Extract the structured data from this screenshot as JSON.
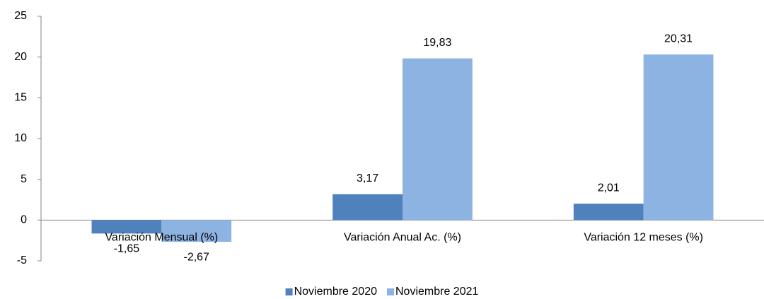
{
  "chart_data": {
    "type": "bar",
    "categories": [
      "Variación Mensual (%)",
      "Variación Anual Ac. (%)",
      "Variación 12 meses (%)"
    ],
    "series": [
      {
        "name": "Noviembre 2020",
        "color": "#4f81bd",
        "values": [
          -1.65,
          3.17,
          2.01
        ],
        "value_labels": [
          "-1,65",
          "3,17",
          "2,01"
        ]
      },
      {
        "name": "Noviembre 2021",
        "color": "#8db3e2",
        "values": [
          -2.67,
          19.83,
          20.31
        ],
        "value_labels": [
          "-2,67",
          "19,83",
          "20,31"
        ]
      }
    ],
    "ylim": [
      -5,
      25
    ],
    "yticks": [
      -5,
      0,
      5,
      10,
      15,
      20,
      25
    ],
    "grid": false,
    "legend": "bottom"
  }
}
